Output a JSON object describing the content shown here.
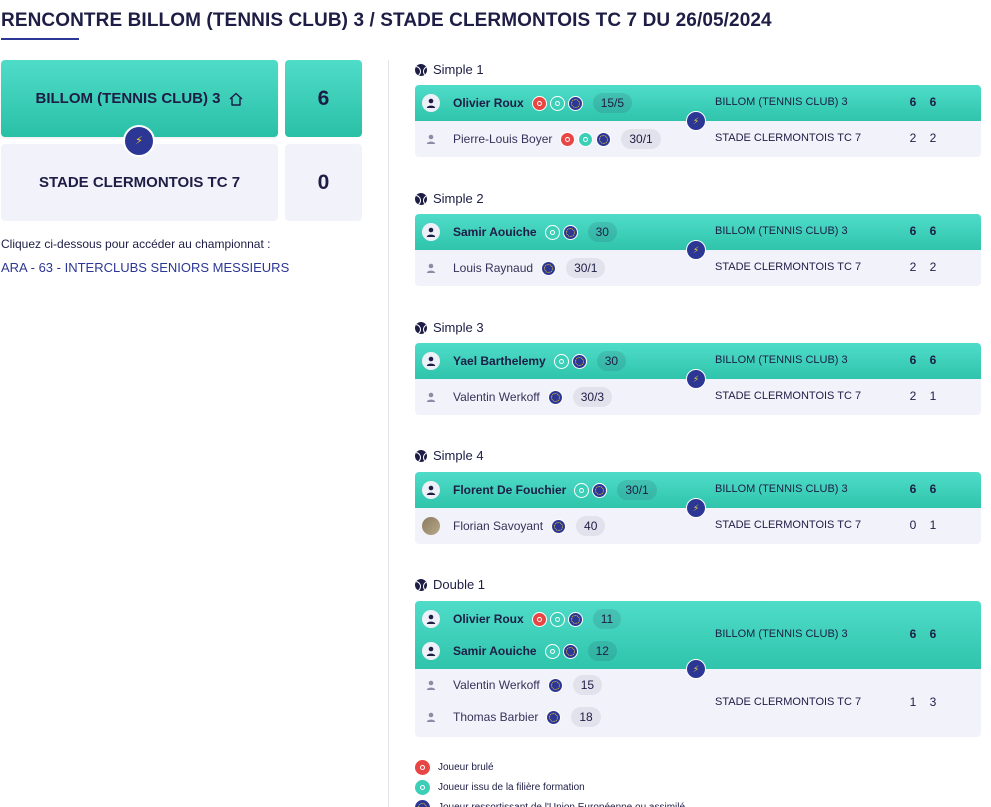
{
  "page": {
    "title": "RENCONTRE BILLOM (TENNIS CLUB) 3 / STADE CLERMONTOIS TC 7 DU 26/05/2024"
  },
  "scoreboard": {
    "home_team": "BILLOM (TENNIS CLUB) 3",
    "home_score": "6",
    "away_team": "STADE CLERMONTOIS TC 7",
    "away_score": "0"
  },
  "championship": {
    "note": "Cliquez ci-dessous pour accéder au championnat :",
    "link": "ARA - 63 - INTERCLUBS SENIORS MESSIEURS"
  },
  "colors": {
    "accent_teal": "#3ccfb8",
    "navy": "#2c3795",
    "burned_red": "#e84545",
    "bolt_yellow": "#f7d32a"
  },
  "matches": [
    {
      "title": "Simple 1",
      "home": {
        "club": "BILLOM (TENNIS CLUB) 3",
        "sets": [
          "6",
          "6"
        ],
        "players": [
          {
            "name": "Olivier Roux",
            "badges": [
              "burned",
              "formation",
              "eu"
            ],
            "rank": "15/5"
          }
        ]
      },
      "away": {
        "club": "STADE CLERMONTOIS TC 7",
        "sets": [
          "2",
          "2"
        ],
        "players": [
          {
            "name": "Pierre-Louis Boyer",
            "badges": [
              "burned",
              "formation",
              "eu"
            ],
            "rank": "30/1"
          }
        ]
      }
    },
    {
      "title": "Simple 2",
      "home": {
        "club": "BILLOM (TENNIS CLUB) 3",
        "sets": [
          "6",
          "6"
        ],
        "players": [
          {
            "name": "Samir Aouiche",
            "badges": [
              "formation",
              "eu"
            ],
            "rank": "30"
          }
        ]
      },
      "away": {
        "club": "STADE CLERMONTOIS TC 7",
        "sets": [
          "2",
          "2"
        ],
        "players": [
          {
            "name": "Louis Raynaud",
            "badges": [
              "eu"
            ],
            "rank": "30/1"
          }
        ]
      }
    },
    {
      "title": "Simple 3",
      "home": {
        "club": "BILLOM (TENNIS CLUB) 3",
        "sets": [
          "6",
          "6"
        ],
        "players": [
          {
            "name": "Yael Barthelemy",
            "badges": [
              "formation",
              "eu"
            ],
            "rank": "30"
          }
        ]
      },
      "away": {
        "club": "STADE CLERMONTOIS TC 7",
        "sets": [
          "2",
          "1"
        ],
        "players": [
          {
            "name": "Valentin Werkoff",
            "badges": [
              "eu"
            ],
            "rank": "30/3"
          }
        ]
      }
    },
    {
      "title": "Simple 4",
      "home": {
        "club": "BILLOM (TENNIS CLUB) 3",
        "sets": [
          "6",
          "6"
        ],
        "players": [
          {
            "name": "Florent De Fouchier",
            "badges": [
              "formation",
              "eu"
            ],
            "rank": "30/1"
          }
        ]
      },
      "away": {
        "club": "STADE CLERMONTOIS TC 7",
        "sets": [
          "0",
          "1"
        ],
        "players": [
          {
            "name": "Florian Savoyant",
            "badges": [
              "eu"
            ],
            "rank": "40",
            "photo": true
          }
        ]
      }
    },
    {
      "title": "Double 1",
      "home": {
        "club": "BILLOM (TENNIS CLUB) 3",
        "sets": [
          "6",
          "6"
        ],
        "players": [
          {
            "name": "Olivier Roux",
            "badges": [
              "burned",
              "formation",
              "eu"
            ],
            "rank": "11"
          },
          {
            "name": "Samir Aouiche",
            "badges": [
              "formation",
              "eu"
            ],
            "rank": "12"
          }
        ]
      },
      "away": {
        "club": "STADE CLERMONTOIS TC 7",
        "sets": [
          "1",
          "3"
        ],
        "players": [
          {
            "name": "Valentin Werkoff",
            "badges": [
              "eu"
            ],
            "rank": "15"
          },
          {
            "name": "Thomas Barbier",
            "badges": [
              "eu"
            ],
            "rank": "18"
          }
        ]
      }
    }
  ],
  "legend": [
    {
      "type": "burned",
      "label": "Joueur brulé"
    },
    {
      "type": "formation",
      "label": "Joueur issu de la filière formation"
    },
    {
      "type": "eu",
      "label": "Joueur ressortissant de l'Union Européenne ou assimilé"
    }
  ]
}
